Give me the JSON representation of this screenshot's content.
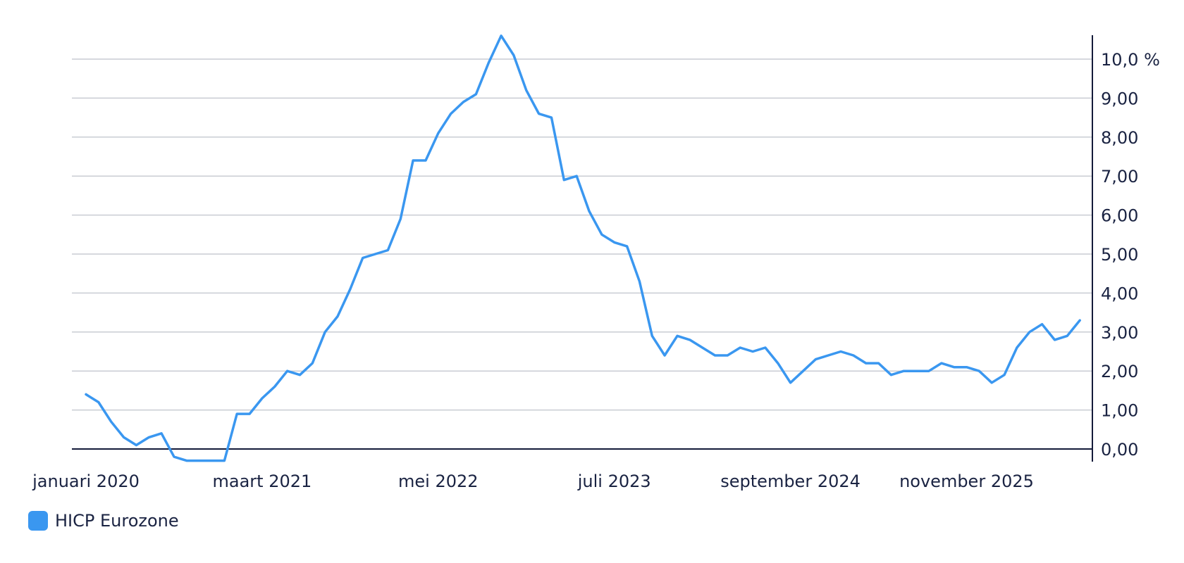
{
  "chart_data": {
    "type": "line",
    "title": "",
    "xlabel": "",
    "ylabel": "",
    "y_axis_position": "right",
    "grid": true,
    "legend_placement": "bottom-left",
    "ylim": [
      -0.3,
      10.6
    ],
    "y_ticks": [
      0,
      1,
      2,
      3,
      4,
      5,
      6,
      7,
      8,
      9,
      10
    ],
    "y_tick_labels": [
      "0,00",
      "1,00",
      "2,00",
      "3,00",
      "4,00",
      "5,00",
      "6,00",
      "7,00",
      "8,00",
      "9,00",
      "10,0 %"
    ],
    "x_start": "2020-01",
    "x_tick_labels": [
      {
        "label": "januari 2020",
        "month": "2020-01"
      },
      {
        "label": "maart 2021",
        "month": "2021-03"
      },
      {
        "label": "mei 2022",
        "month": "2022-05"
      },
      {
        "label": "juli 2023",
        "month": "2023-07"
      },
      {
        "label": "september 2024",
        "month": "2024-09"
      },
      {
        "label": "november 2025",
        "month": "2025-11"
      }
    ],
    "line_color": "#3a97f0",
    "series": [
      {
        "name": "HICP Eurozone",
        "values": [
          1.4,
          1.2,
          0.7,
          0.3,
          0.1,
          0.3,
          0.4,
          -0.2,
          -0.3,
          -0.3,
          -0.3,
          -0.3,
          0.9,
          0.9,
          1.3,
          1.6,
          2.0,
          1.9,
          2.2,
          3.0,
          3.4,
          4.1,
          4.9,
          5.0,
          5.1,
          5.9,
          7.4,
          7.4,
          8.1,
          8.6,
          8.9,
          9.1,
          9.9,
          10.6,
          10.1,
          9.2,
          8.6,
          8.5,
          6.9,
          7.0,
          6.1,
          5.5,
          5.3,
          5.2,
          4.3,
          2.9,
          2.4,
          2.9,
          2.8,
          2.6,
          2.4,
          2.4,
          2.6,
          2.5,
          2.6,
          2.2,
          1.7,
          2.0,
          2.3,
          2.4,
          2.5,
          2.4,
          2.2,
          2.2,
          1.9,
          2.0,
          2.0,
          2.0,
          2.2,
          2.1,
          2.1,
          2.0,
          1.7,
          1.9,
          2.6,
          3.0,
          3.2,
          2.8,
          2.9,
          3.3
        ]
      }
    ]
  }
}
